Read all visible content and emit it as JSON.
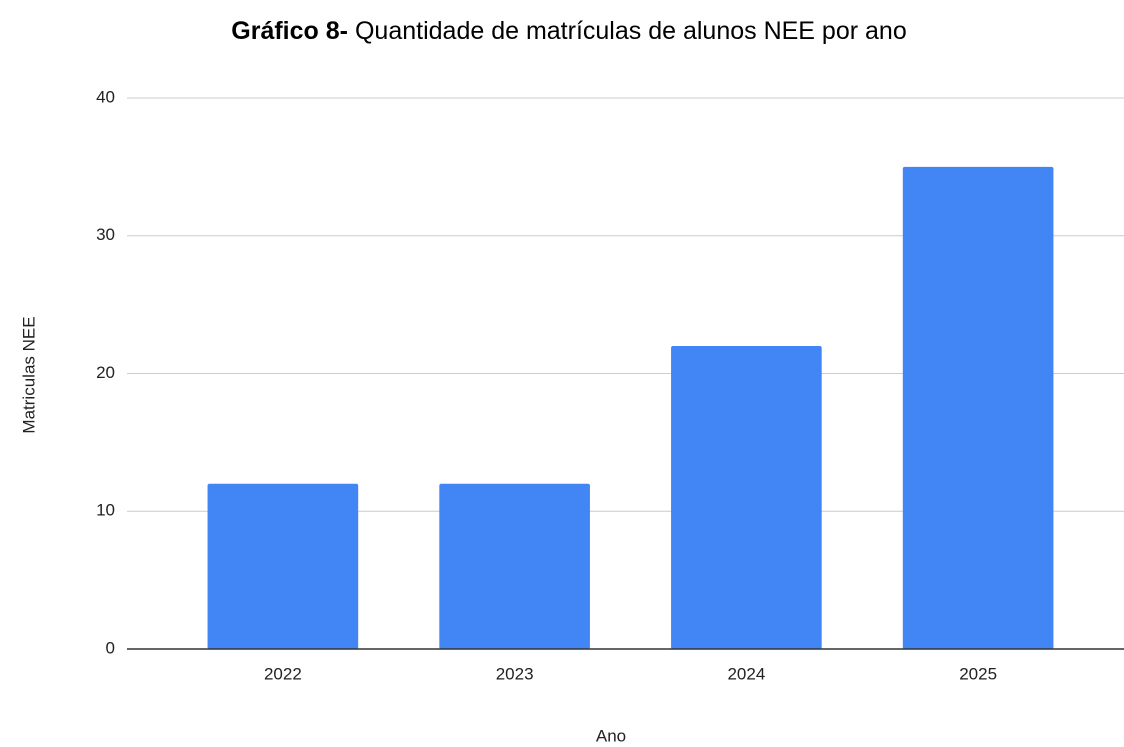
{
  "chart_data": {
    "type": "bar",
    "title": [
      "Gráfico 8-",
      "Quantidade de matrículas de alunos NEE por ano"
    ],
    "x_label": "Ano",
    "y_label": "Matriculas NEE",
    "categories": [
      "2022",
      "2023",
      "2024",
      "2025"
    ],
    "values": [
      12,
      12,
      22,
      35
    ],
    "color": "#4285f4",
    "ylim": [
      0,
      40
    ],
    "yticks": [
      0,
      10,
      20,
      30,
      40
    ],
    "grid": true
  }
}
